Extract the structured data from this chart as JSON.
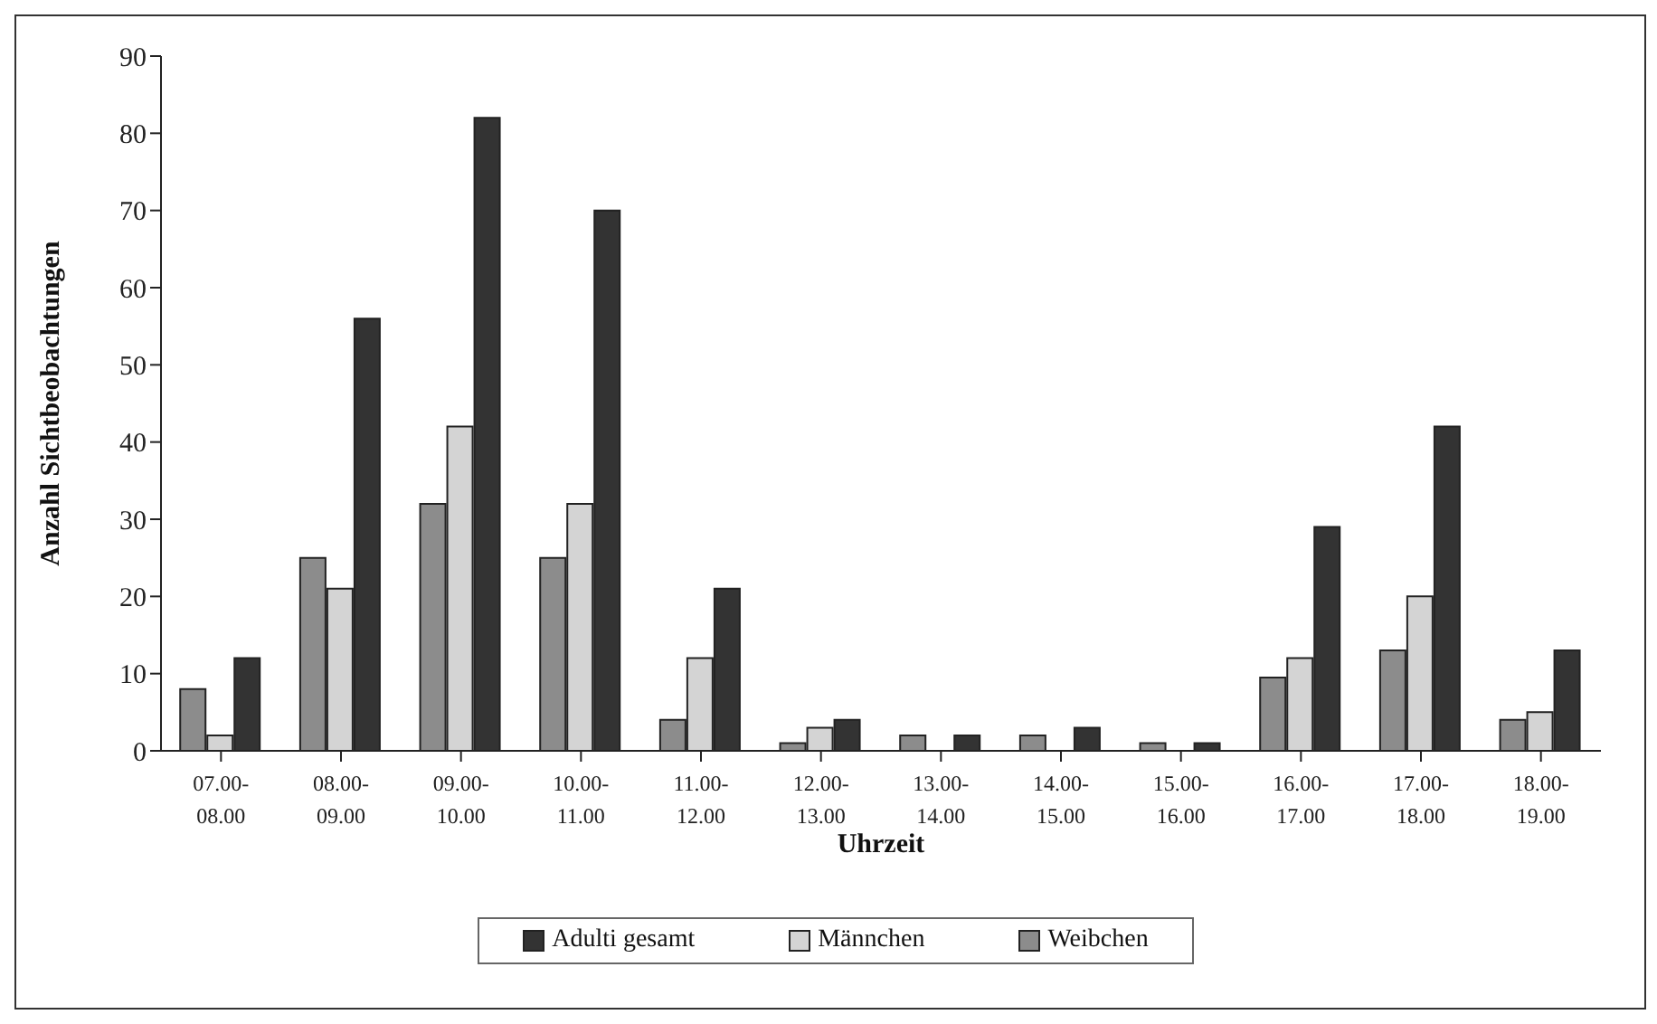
{
  "chart_data": {
    "type": "bar",
    "xlabel": "Uhrzeit",
    "ylabel": "Anzahl Sichtbeobachtungen",
    "categories": [
      "07.00-08.00",
      "08.00-09.00",
      "09.00-10.00",
      "10.00-11.00",
      "11.00-12.00",
      "12.00-13.00",
      "13.00-14.00",
      "14.00-15.00",
      "15.00-16.00",
      "16.00-17.00",
      "17.00-18.00",
      "18.00-19.00"
    ],
    "series": [
      {
        "name": "Weibchen",
        "color": "#8c8c8c",
        "values": [
          8,
          25,
          32,
          25,
          4,
          1,
          2,
          2,
          1,
          9.5,
          13,
          4
        ]
      },
      {
        "name": "Männchen",
        "color": "#d4d4d4",
        "values": [
          2,
          21,
          42,
          32,
          12,
          3,
          0,
          0,
          0,
          12,
          20,
          5
        ]
      },
      {
        "name": "Adulti gesamt",
        "color": "#333333",
        "values": [
          12,
          56,
          82,
          70,
          21,
          4,
          2,
          3,
          1,
          29,
          42,
          13
        ]
      }
    ],
    "ylim": [
      0,
      90
    ],
    "yticks": [
      0,
      10,
      20,
      30,
      40,
      50,
      60,
      70,
      80,
      90
    ],
    "grid": false,
    "legend": "bottom"
  }
}
